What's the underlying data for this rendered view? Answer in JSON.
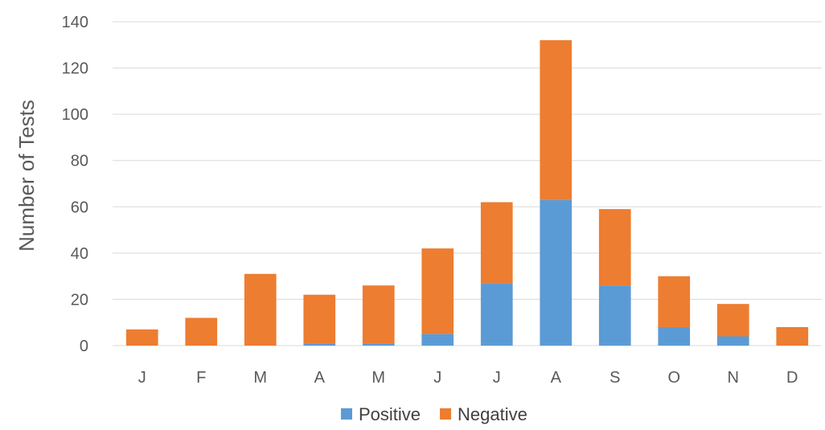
{
  "chart_data": {
    "type": "bar",
    "stacked": true,
    "categories": [
      "J",
      "F",
      "M",
      "A",
      "M",
      "J",
      "J",
      "A",
      "S",
      "O",
      "N",
      "D"
    ],
    "series": [
      {
        "name": "Positive",
        "values": [
          0,
          0,
          0,
          1,
          1,
          5,
          27,
          63,
          26,
          8,
          4,
          0
        ]
      },
      {
        "name": "Negative",
        "values": [
          7,
          12,
          31,
          21,
          25,
          37,
          35,
          69,
          33,
          22,
          14,
          8
        ]
      }
    ],
    "title": "",
    "xlabel": "",
    "ylabel": "Number of Tests",
    "ylim": [
      0,
      140
    ],
    "yticks": [
      0,
      20,
      40,
      60,
      80,
      100,
      120,
      140
    ],
    "grid": true,
    "legend_position": "bottom"
  },
  "colors": {
    "Positive": "#5b9bd5",
    "Negative": "#ed7d31"
  }
}
